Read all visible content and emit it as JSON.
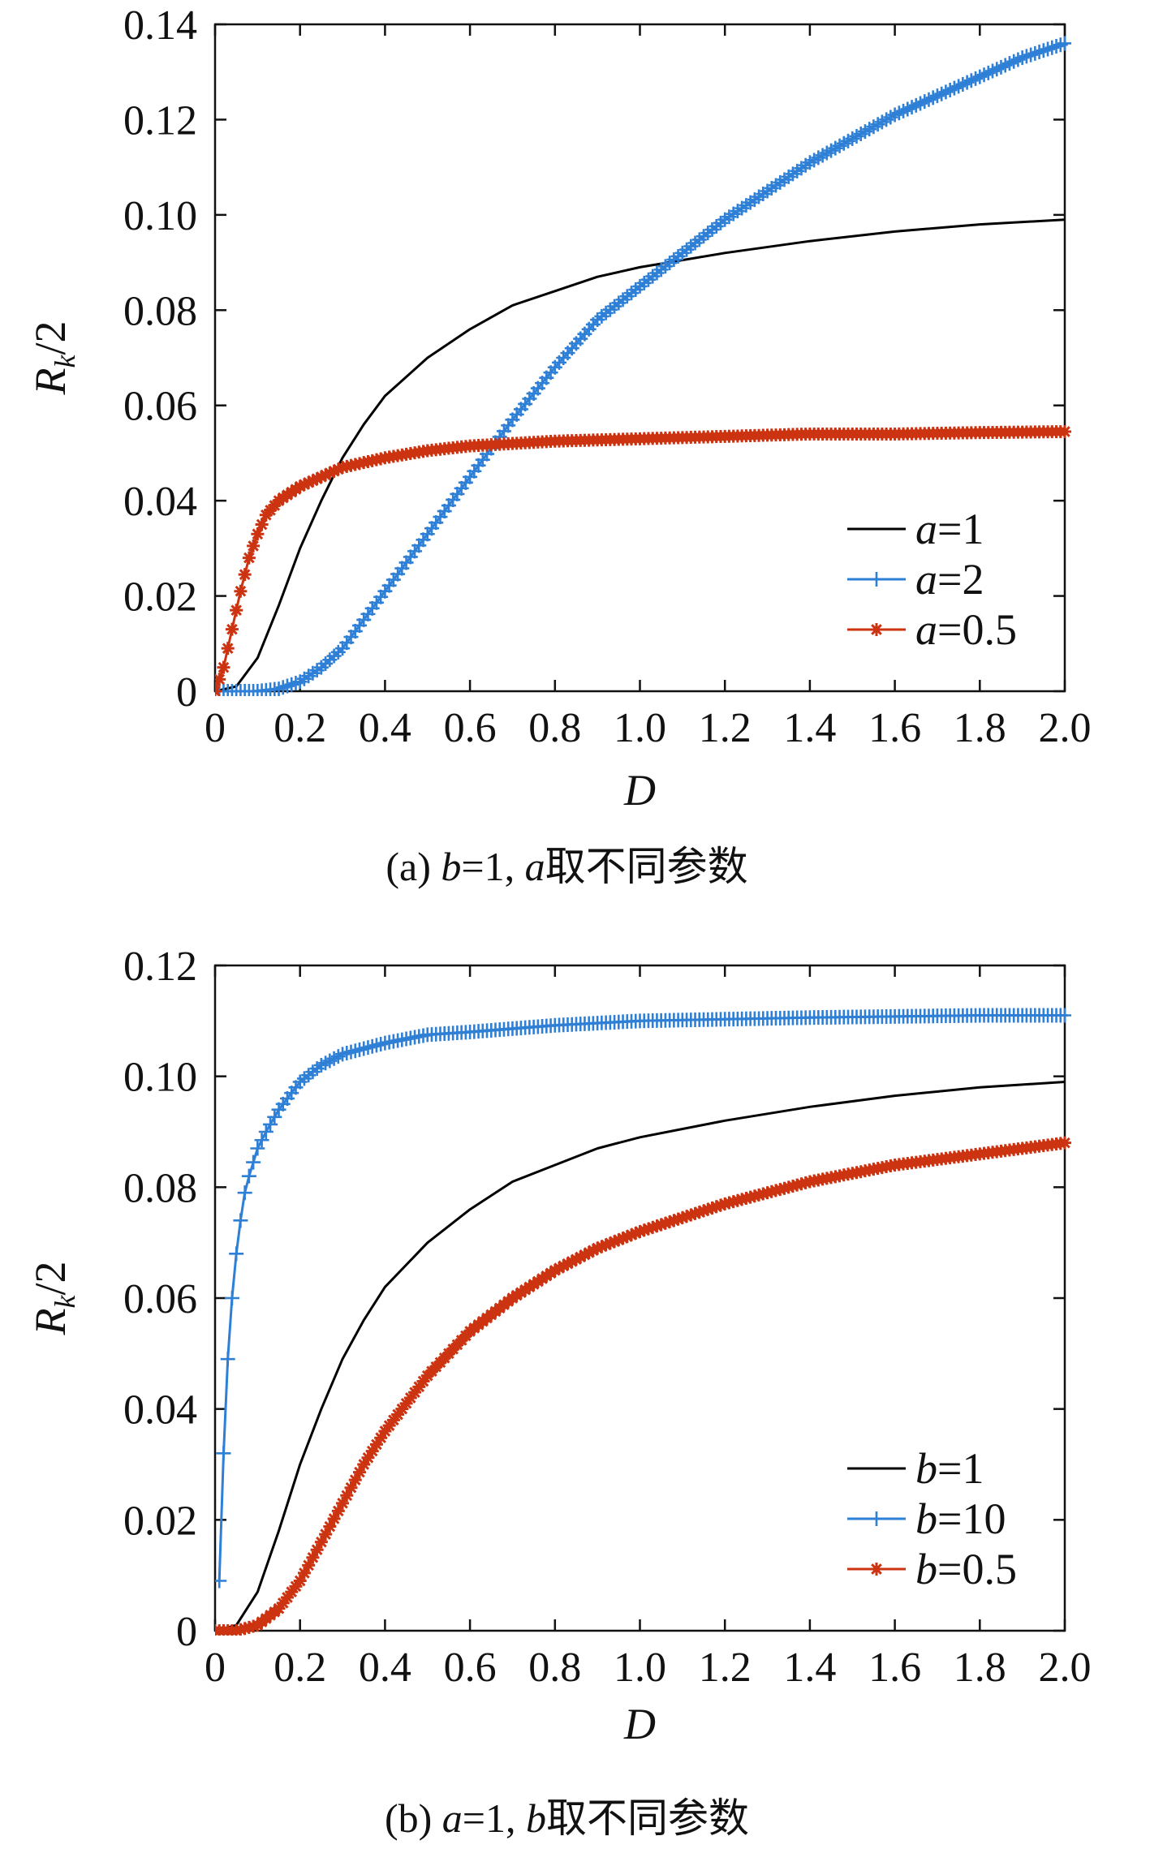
{
  "chart_data": [
    {
      "id": "a",
      "type": "line",
      "xlabel": "D",
      "ylabel": "R_k/2",
      "ylabel_main": "R",
      "ylabel_sub": "k",
      "ylabel_rest": "/2",
      "xlim": [
        0,
        2.0
      ],
      "ylim": [
        0,
        0.14
      ],
      "xticks": [
        0,
        0.2,
        0.4,
        0.6,
        0.8,
        1.0,
        1.2,
        1.4,
        1.6,
        1.8,
        2.0
      ],
      "xtick_labels": [
        "0",
        "0.2",
        "0.4",
        "0.6",
        "0.8",
        "1.0",
        "1.2",
        "1.4",
        "1.6",
        "1.8",
        "2.0"
      ],
      "yticks": [
        0,
        0.02,
        0.04,
        0.06,
        0.08,
        0.1,
        0.12,
        0.14
      ],
      "ytick_labels": [
        "0",
        "0.02",
        "0.04",
        "0.06",
        "0.08",
        "0.10",
        "0.12",
        "0.14"
      ],
      "legend_position": "bottom-right",
      "caption": {
        "prefix": "(a) ",
        "var1": "b",
        "mid": "=1, ",
        "var2": "a",
        "suffix": "取不同参数"
      },
      "series": [
        {
          "name": "a=1",
          "name_var": "a",
          "name_rest": "=1",
          "color": "#000000",
          "marker": "none",
          "x": [
            0,
            0.05,
            0.1,
            0.15,
            0.2,
            0.25,
            0.3,
            0.35,
            0.4,
            0.5,
            0.6,
            0.7,
            0.8,
            0.9,
            1.0,
            1.2,
            1.4,
            1.6,
            1.8,
            2.0
          ],
          "y": [
            0,
            0.001,
            0.007,
            0.018,
            0.03,
            0.04,
            0.049,
            0.056,
            0.062,
            0.07,
            0.076,
            0.081,
            0.084,
            0.087,
            0.089,
            0.092,
            0.0945,
            0.0965,
            0.098,
            0.099
          ]
        },
        {
          "name": "a=2",
          "name_var": "a",
          "name_rest": "=2",
          "color": "#2e7fd6",
          "marker": "plus",
          "x": [
            0,
            0.1,
            0.15,
            0.2,
            0.25,
            0.3,
            0.35,
            0.4,
            0.45,
            0.5,
            0.6,
            0.7,
            0.8,
            0.9,
            1.0,
            1.1,
            1.2,
            1.3,
            1.4,
            1.5,
            1.6,
            1.7,
            1.8,
            1.9,
            2.0
          ],
          "y": [
            0,
            0,
            0.0005,
            0.002,
            0.005,
            0.009,
            0.015,
            0.021,
            0.027,
            0.033,
            0.045,
            0.057,
            0.068,
            0.078,
            0.085,
            0.092,
            0.099,
            0.105,
            0.111,
            0.116,
            0.121,
            0.125,
            0.129,
            0.133,
            0.136
          ]
        },
        {
          "name": "a=0.5",
          "name_var": "a",
          "name_rest": "=0.5",
          "color": "#cc3311",
          "marker": "star",
          "x": [
            0,
            0.02,
            0.04,
            0.06,
            0.08,
            0.1,
            0.12,
            0.15,
            0.2,
            0.25,
            0.3,
            0.4,
            0.5,
            0.6,
            0.8,
            1.0,
            1.2,
            1.4,
            1.6,
            1.8,
            2.0
          ],
          "y": [
            0,
            0.005,
            0.013,
            0.021,
            0.028,
            0.033,
            0.037,
            0.04,
            0.043,
            0.045,
            0.047,
            0.049,
            0.0505,
            0.0515,
            0.0525,
            0.053,
            0.0535,
            0.054,
            0.054,
            0.0543,
            0.0545
          ]
        }
      ]
    },
    {
      "id": "b",
      "type": "line",
      "xlabel": "D",
      "ylabel": "R_k/2",
      "ylabel_main": "R",
      "ylabel_sub": "k",
      "ylabel_rest": "/2",
      "xlim": [
        0,
        2.0
      ],
      "ylim": [
        0,
        0.12
      ],
      "xticks": [
        0,
        0.2,
        0.4,
        0.6,
        0.8,
        1.0,
        1.2,
        1.4,
        1.6,
        1.8,
        2.0
      ],
      "xtick_labels": [
        "0",
        "0.2",
        "0.4",
        "0.6",
        "0.8",
        "1.0",
        "1.2",
        "1.4",
        "1.6",
        "1.8",
        "2.0"
      ],
      "yticks": [
        0,
        0.02,
        0.04,
        0.06,
        0.08,
        0.1,
        0.12
      ],
      "ytick_labels": [
        "0",
        "0.02",
        "0.04",
        "0.06",
        "0.08",
        "0.10",
        "0.12"
      ],
      "legend_position": "bottom-right",
      "caption": {
        "prefix": "(b) ",
        "var1": "a",
        "mid": "=1, ",
        "var2": "b",
        "suffix": "取不同参数"
      },
      "series": [
        {
          "name": "b=1",
          "name_var": "b",
          "name_rest": "=1",
          "color": "#000000",
          "marker": "none",
          "x": [
            0,
            0.05,
            0.1,
            0.15,
            0.2,
            0.25,
            0.3,
            0.35,
            0.4,
            0.5,
            0.6,
            0.7,
            0.8,
            0.9,
            1.0,
            1.2,
            1.4,
            1.6,
            1.8,
            2.0
          ],
          "y": [
            0,
            0.001,
            0.007,
            0.018,
            0.03,
            0.04,
            0.049,
            0.056,
            0.062,
            0.07,
            0.076,
            0.081,
            0.084,
            0.087,
            0.089,
            0.092,
            0.0945,
            0.0965,
            0.098,
            0.099
          ]
        },
        {
          "name": "b=10",
          "name_var": "b",
          "name_rest": "=10",
          "color": "#2e7fd6",
          "marker": "plus",
          "x": [
            0.01,
            0.02,
            0.03,
            0.04,
            0.05,
            0.06,
            0.07,
            0.08,
            0.1,
            0.12,
            0.15,
            0.2,
            0.25,
            0.3,
            0.4,
            0.5,
            0.6,
            0.8,
            1.0,
            1.2,
            1.4,
            1.6,
            1.8,
            2.0
          ],
          "y": [
            0.009,
            0.032,
            0.049,
            0.06,
            0.068,
            0.074,
            0.079,
            0.082,
            0.087,
            0.09,
            0.094,
            0.099,
            0.102,
            0.104,
            0.106,
            0.1075,
            0.108,
            0.1092,
            0.11,
            0.1103,
            0.1106,
            0.1108,
            0.111,
            0.111
          ]
        },
        {
          "name": "b=0.5",
          "name_var": "b",
          "name_rest": "=0.5",
          "color": "#cc3311",
          "marker": "star",
          "x": [
            0,
            0.05,
            0.1,
            0.15,
            0.2,
            0.25,
            0.3,
            0.35,
            0.4,
            0.5,
            0.6,
            0.7,
            0.8,
            0.9,
            1.0,
            1.2,
            1.4,
            1.6,
            1.8,
            2.0
          ],
          "y": [
            0,
            0,
            0.001,
            0.004,
            0.009,
            0.016,
            0.023,
            0.03,
            0.036,
            0.046,
            0.054,
            0.06,
            0.065,
            0.069,
            0.072,
            0.077,
            0.081,
            0.084,
            0.086,
            0.088
          ]
        }
      ]
    }
  ]
}
